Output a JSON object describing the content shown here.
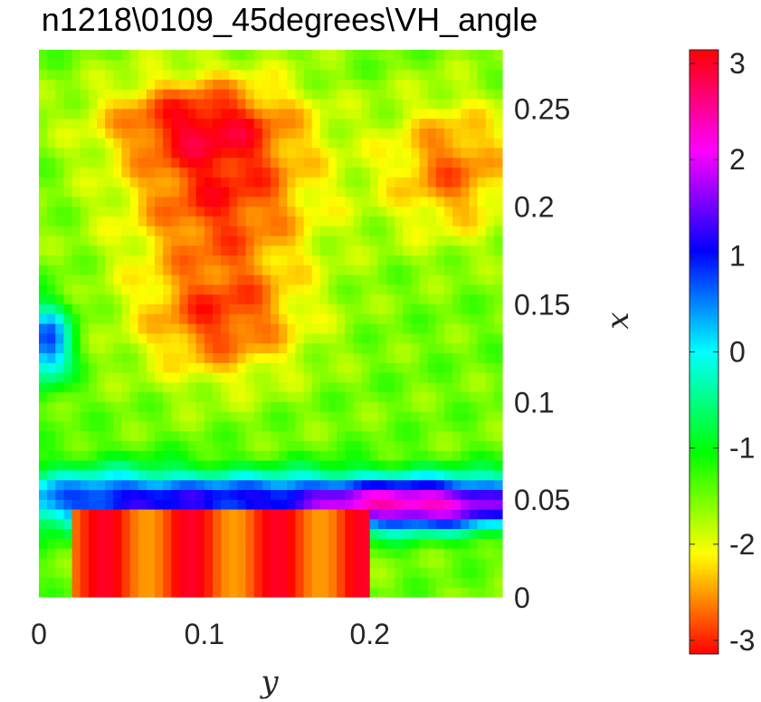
{
  "chart_data": {
    "type": "heatmap",
    "title": "n1218\\0109_45degrees\\VH_angle",
    "xlabel": "y",
    "ylabel": "x",
    "xlim": [
      0,
      0.28
    ],
    "ylim": [
      0,
      0.28
    ],
    "xticks": [
      0,
      0.1,
      0.2
    ],
    "xtick_labels": [
      "0",
      "0.1",
      "0.2"
    ],
    "yticks": [
      0,
      0.05,
      0.1,
      0.15,
      0.2,
      0.25
    ],
    "ytick_labels": [
      "0",
      "0.05",
      "0.1",
      "0.15",
      "0.2",
      "0.25"
    ],
    "y_axis_location": "right",
    "grid": false,
    "colormap": "hsv",
    "colorbar": {
      "location": "right",
      "range": [
        -3.14159,
        3.14159
      ],
      "ticks": [
        -3,
        -2,
        -1,
        0,
        1,
        2,
        3
      ],
      "tick_labels": [
        "-3",
        "-2",
        "-1",
        "0",
        "1",
        "2",
        "3"
      ]
    },
    "grid_size": [
      56,
      56
    ],
    "value_model": {
      "background": -1.5,
      "features": [
        {
          "region": "upper-left red mass",
          "peak_value": -3.0
        },
        {
          "region": "upper-right orange patch",
          "peak_value": -2.7
        },
        {
          "region": "lower blue band near x 0.05",
          "value": 1.0
        },
        {
          "region": "lower magenta band near x 0.03",
          "value": 2.5
        },
        {
          "region": "bottom edge red/orange strip",
          "value": -2.9
        },
        {
          "region": "left edge blue patch near x 0.12",
          "value": 0.9
        }
      ]
    }
  }
}
